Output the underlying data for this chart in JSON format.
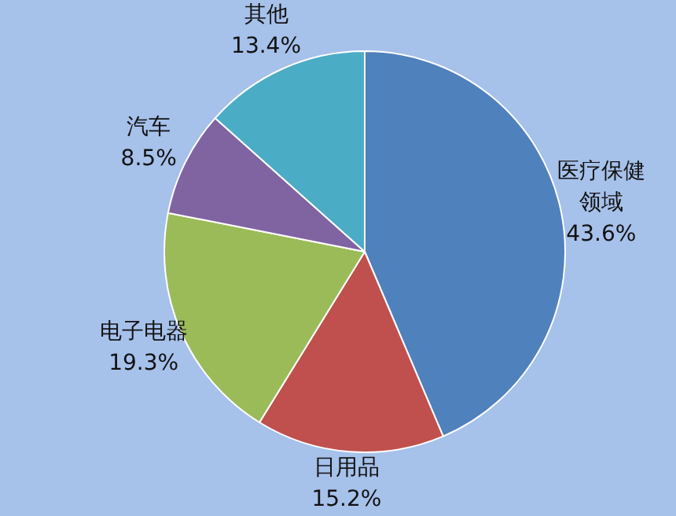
{
  "chart_data": {
    "type": "pie",
    "categories": [
      "医疗保健领域",
      "日用品",
      "电子电器",
      "汽车",
      "其他"
    ],
    "values": [
      43.6,
      15.2,
      19.3,
      8.5,
      13.4
    ],
    "value_labels": [
      "43.6%",
      "15.2%",
      "19.3%",
      "8.5%",
      "13.4%"
    ],
    "colors": [
      "#4f81bd",
      "#c0504d",
      "#9bbb59",
      "#8064a2",
      "#4bacc6"
    ],
    "legend": false
  }
}
